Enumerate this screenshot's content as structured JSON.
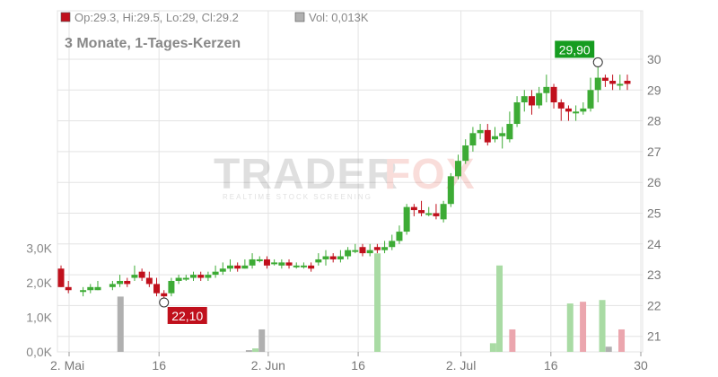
{
  "header": {
    "ohlc_text": "Op:29.3, Hi:29.5, Lo:29, Cl:29.2",
    "vol_text": "Vol: 0,013K",
    "subtitle": "3 Monate, 1-Tages-Kerzen",
    "ohlc_color": "#c0101c",
    "vol_color": "#b0b0b0"
  },
  "watermark": {
    "brand_left": "TRADER",
    "brand_right": "FOX",
    "tagline": "REALTIME STOCK SCREENING"
  },
  "annotations": {
    "high_label": "29,90",
    "high_color": "#169c20",
    "low_label": "22,10",
    "low_color": "#c0101c"
  },
  "chart_data": {
    "type": "candlestick",
    "title": "3 Monate, 1-Tages-Kerzen",
    "price_axis": {
      "side": "right",
      "min": 20.5,
      "max": 30.8,
      "ticks": [
        "21",
        "22",
        "23",
        "24",
        "25",
        "26",
        "27",
        "28",
        "29",
        "30"
      ]
    },
    "volume_axis": {
      "side": "left",
      "ticks": [
        "0,0K",
        "1,0K",
        "2,0K",
        "3,0K"
      ],
      "max": 3.7
    },
    "x_tick_labels": [
      "2. Mai",
      "16",
      "2. Jun",
      "16",
      "2. Jul",
      "16",
      "30"
    ],
    "x_tick_day_index": [
      0,
      14,
      31,
      45,
      61,
      75,
      89
    ],
    "colors": {
      "up": "#3dab35",
      "down": "#c0101c",
      "vol_up": "#a9dba4",
      "vol_down": "#eba6ae",
      "vol_neutral": "#b0b0b0",
      "grid": "#e3e3e3"
    },
    "candles": [
      [
        0,
        23.2,
        22.6,
        23.3,
        22.6
      ],
      [
        1,
        22.6,
        22.5,
        22.8,
        22.4
      ],
      [
        3,
        22.5,
        22.5,
        22.6,
        22.3
      ],
      [
        4,
        22.5,
        22.6,
        22.7,
        22.4
      ],
      [
        5,
        22.5,
        22.6,
        22.8,
        22.5
      ],
      [
        7,
        22.6,
        22.7,
        22.8,
        22.5
      ],
      [
        8,
        22.7,
        22.8,
        23.0,
        22.6
      ],
      [
        9,
        22.8,
        22.7,
        22.9,
        22.6
      ],
      [
        10,
        22.9,
        23.0,
        23.3,
        22.8
      ],
      [
        11,
        23.1,
        22.9,
        23.2,
        22.8
      ],
      [
        12,
        22.9,
        22.7,
        23.1,
        22.6
      ],
      [
        13,
        22.7,
        22.4,
        22.9,
        22.3
      ],
      [
        14,
        22.4,
        22.3,
        22.5,
        22.1
      ],
      [
        15,
        22.4,
        22.8,
        22.9,
        22.3
      ],
      [
        16,
        22.8,
        22.9,
        23.0,
        22.7
      ],
      [
        17,
        22.9,
        22.9,
        23.0,
        22.8
      ],
      [
        18,
        22.9,
        23.0,
        23.1,
        22.8
      ],
      [
        19,
        23.0,
        22.9,
        23.1,
        22.8
      ],
      [
        20,
        22.9,
        23.0,
        23.1,
        22.8
      ],
      [
        21,
        23.0,
        23.1,
        23.3,
        22.9
      ],
      [
        22,
        23.1,
        23.2,
        23.4,
        23.0
      ],
      [
        23,
        23.2,
        23.3,
        23.5,
        23.1
      ],
      [
        24,
        23.3,
        23.2,
        23.4,
        23.1
      ],
      [
        25,
        23.2,
        23.3,
        23.5,
        23.2
      ],
      [
        26,
        23.3,
        23.5,
        23.7,
        23.2
      ],
      [
        27,
        23.5,
        23.5,
        23.6,
        23.4
      ],
      [
        28,
        23.5,
        23.3,
        23.6,
        23.2
      ],
      [
        29,
        23.4,
        23.4,
        23.5,
        23.3
      ],
      [
        30,
        23.3,
        23.4,
        23.5,
        23.2
      ],
      [
        31,
        23.4,
        23.3,
        23.5,
        23.2
      ],
      [
        32,
        23.3,
        23.3,
        23.4,
        23.2
      ],
      [
        33,
        23.3,
        23.3,
        23.4,
        23.2
      ],
      [
        34,
        23.3,
        23.2,
        23.4,
        23.1
      ],
      [
        35,
        23.4,
        23.5,
        23.7,
        23.3
      ],
      [
        36,
        23.5,
        23.6,
        23.8,
        23.3
      ],
      [
        37,
        23.6,
        23.5,
        23.7,
        23.4
      ],
      [
        38,
        23.5,
        23.6,
        23.8,
        23.4
      ],
      [
        39,
        23.6,
        23.8,
        23.9,
        23.5
      ],
      [
        40,
        23.8,
        23.8,
        24.0,
        23.7
      ],
      [
        41,
        23.9,
        23.7,
        24.0,
        23.6
      ],
      [
        42,
        23.7,
        23.8,
        24.0,
        23.6
      ],
      [
        43,
        23.9,
        23.8,
        24.0,
        23.7
      ],
      [
        44,
        23.8,
        23.9,
        24.1,
        23.7
      ],
      [
        45,
        23.9,
        24.1,
        24.3,
        23.8
      ],
      [
        46,
        24.1,
        24.4,
        24.6,
        24.0
      ],
      [
        47,
        24.4,
        25.2,
        25.3,
        24.3
      ],
      [
        48,
        25.2,
        25.1,
        25.3,
        24.9
      ],
      [
        49,
        25.1,
        25.0,
        25.4,
        24.9
      ],
      [
        50,
        25.0,
        25.0,
        25.2,
        24.9
      ],
      [
        51,
        25.0,
        24.9,
        25.3,
        24.8
      ],
      [
        52,
        24.8,
        25.3,
        25.4,
        24.7
      ],
      [
        53,
        25.3,
        26.2,
        26.3,
        25.2
      ],
      [
        54,
        26.2,
        26.7,
        26.9,
        26.1
      ],
      [
        55,
        26.7,
        27.2,
        27.4,
        26.6
      ],
      [
        56,
        27.2,
        27.6,
        27.8,
        27.0
      ],
      [
        57,
        27.6,
        27.7,
        27.9,
        27.4
      ],
      [
        58,
        27.7,
        27.3,
        27.9,
        27.2
      ],
      [
        59,
        27.4,
        27.5,
        27.8,
        27.3
      ],
      [
        60,
        27.5,
        27.6,
        27.8,
        27.1
      ],
      [
        61,
        27.4,
        27.9,
        28.3,
        27.3
      ],
      [
        62,
        27.9,
        28.6,
        28.8,
        27.8
      ],
      [
        63,
        28.6,
        28.8,
        29.0,
        28.3
      ],
      [
        64,
        28.8,
        28.5,
        29.0,
        28.2
      ],
      [
        65,
        28.5,
        28.9,
        29.1,
        28.4
      ],
      [
        66,
        28.9,
        29.1,
        29.5,
        28.6
      ],
      [
        67,
        29.1,
        28.6,
        29.2,
        28.4
      ],
      [
        68,
        28.6,
        28.4,
        28.7,
        28.0
      ],
      [
        69,
        28.4,
        28.3,
        28.5,
        28.0
      ],
      [
        70,
        28.3,
        28.3,
        28.5,
        28.0
      ],
      [
        71,
        28.3,
        28.4,
        28.6,
        28.2
      ],
      [
        72,
        28.4,
        29.0,
        29.4,
        28.3
      ],
      [
        73,
        29.0,
        29.4,
        29.9,
        28.6
      ],
      [
        74,
        29.4,
        29.3,
        29.5,
        29.1
      ],
      [
        75,
        29.3,
        29.2,
        29.5,
        29.0
      ],
      [
        76,
        29.2,
        29.2,
        29.5,
        29.0
      ],
      [
        77,
        29.3,
        29.2,
        29.5,
        29.0
      ]
    ],
    "volume": [
      [
        8,
        1.6,
        "neutral"
      ],
      [
        28,
        0.05,
        "neutral"
      ],
      [
        29,
        0.1,
        "up"
      ],
      [
        30,
        0.65,
        "neutral"
      ],
      [
        48,
        2.85,
        "up"
      ],
      [
        66,
        0.25,
        "up"
      ],
      [
        67,
        2.5,
        "up"
      ],
      [
        69,
        0.65,
        "down"
      ],
      [
        78,
        1.4,
        "up"
      ],
      [
        80,
        1.45,
        "down"
      ],
      [
        83,
        1.5,
        "up"
      ],
      [
        84,
        0.15,
        "neutral"
      ],
      [
        86,
        0.65,
        "down"
      ]
    ],
    "high_marker": {
      "index": 73,
      "value": 29.9
    },
    "low_marker": {
      "index": 14,
      "value": 22.1
    }
  }
}
